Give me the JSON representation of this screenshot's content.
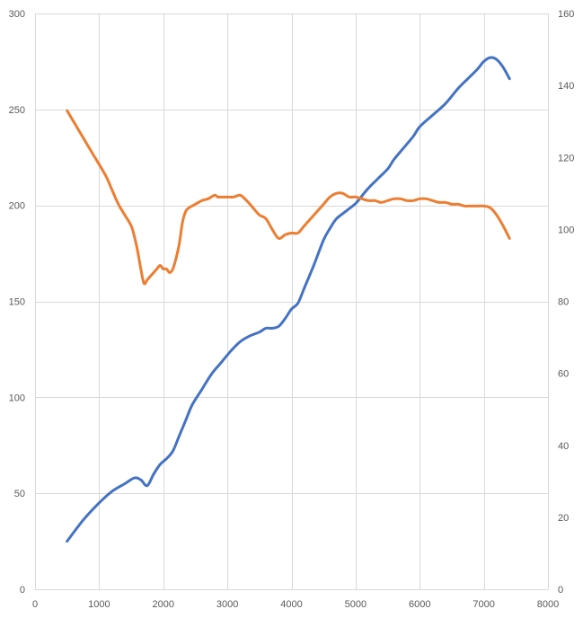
{
  "chart_data": {
    "type": "line",
    "title": "",
    "xlabel": "",
    "ylabel": "",
    "y2label": "",
    "xlim": [
      0,
      8000
    ],
    "ylim": [
      0,
      300
    ],
    "y2lim": [
      0,
      160
    ],
    "x_ticks": [
      0,
      1000,
      2000,
      3000,
      4000,
      5000,
      6000,
      7000,
      8000
    ],
    "y_ticks": [
      0,
      50,
      100,
      150,
      200,
      250,
      300
    ],
    "y2_ticks": [
      0,
      20,
      40,
      60,
      80,
      100,
      120,
      140,
      160
    ],
    "grid": true,
    "legend": "none",
    "series": [
      {
        "axis": "left",
        "color": "#4472C4",
        "x": [
          500,
          750,
          1000,
          1200,
          1400,
          1550,
          1650,
          1750,
          1850,
          1950,
          2050,
          2150,
          2250,
          2350,
          2450,
          2600,
          2750,
          2900,
          3050,
          3200,
          3350,
          3500,
          3600,
          3700,
          3800,
          3900,
          4000,
          4100,
          4200,
          4350,
          4500,
          4600,
          4700,
          4850,
          5000,
          5100,
          5200,
          5350,
          5500,
          5600,
          5750,
          5900,
          6000,
          6200,
          6400,
          6600,
          6750,
          6900,
          7000,
          7100,
          7200,
          7300,
          7400
        ],
        "y": [
          25,
          36,
          45,
          51,
          55,
          58,
          57,
          54,
          60,
          65,
          68,
          72,
          80,
          88,
          96,
          104,
          112,
          118,
          124,
          129,
          132,
          134,
          136,
          136,
          137,
          141,
          146,
          149,
          157,
          169,
          182,
          188,
          193,
          197,
          201,
          205,
          209,
          214,
          219,
          224,
          230,
          236,
          241,
          247,
          253,
          261,
          266,
          271,
          275,
          277,
          276,
          272,
          266
        ]
      },
      {
        "axis": "right",
        "color": "#ED7D31",
        "x": [
          500,
          700,
          900,
          1100,
          1200,
          1300,
          1400,
          1500,
          1550,
          1600,
          1650,
          1700,
          1750,
          1800,
          1900,
          1950,
          2000,
          2050,
          2100,
          2150,
          2200,
          2250,
          2300,
          2350,
          2400,
          2450,
          2500,
          2600,
          2700,
          2800,
          2850,
          2900,
          3000,
          3100,
          3200,
          3300,
          3400,
          3500,
          3600,
          3700,
          3800,
          3900,
          4000,
          4100,
          4200,
          4300,
          4400,
          4500,
          4600,
          4700,
          4800,
          4900,
          5000,
          5100,
          5200,
          5300,
          5400,
          5500,
          5600,
          5700,
          5800,
          5900,
          6000,
          6100,
          6200,
          6300,
          6400,
          6500,
          6600,
          6700,
          6800,
          6900,
          7000,
          7100,
          7200,
          7300,
          7400
        ],
        "y": [
          133,
          127,
          121,
          115,
          111,
          107,
          104,
          101,
          98,
          94,
          89,
          85,
          86,
          87,
          89,
          90,
          89,
          89,
          88,
          89,
          92,
          96,
          102,
          105,
          106,
          106.5,
          107,
          108,
          108.5,
          109.5,
          109,
          109,
          109,
          109,
          109.5,
          108,
          106,
          104,
          103,
          100,
          97.5,
          98.5,
          99,
          99,
          101,
          103,
          105,
          107,
          109,
          110,
          110,
          109,
          109,
          108.5,
          108,
          108,
          107.5,
          108,
          108.5,
          108.5,
          108,
          108,
          108.5,
          108.5,
          108,
          107.5,
          107.5,
          107,
          107,
          106.5,
          106.5,
          106.5,
          106.5,
          106,
          104,
          101,
          97.5
        ]
      }
    ]
  }
}
